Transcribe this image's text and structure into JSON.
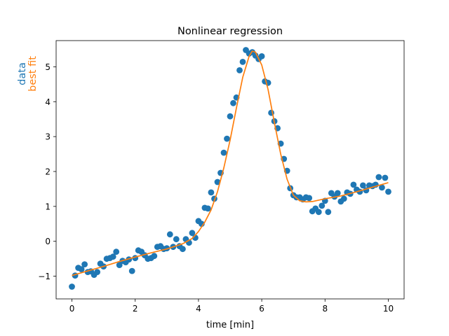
{
  "chart_data": {
    "type": "scatter",
    "title": "Nonlinear regression",
    "xlabel": "time [min]",
    "ylabel_parts": [
      {
        "text": "data",
        "color": "#1f77b4"
      },
      {
        "text": "best fit",
        "color": "#ff7f0e"
      }
    ],
    "xlim": [
      -0.5,
      10.5
    ],
    "ylim": [
      -1.65,
      5.75
    ],
    "xticks": [
      0,
      2,
      4,
      6,
      8,
      10
    ],
    "yticks": [
      -1,
      0,
      1,
      2,
      3,
      4,
      5
    ],
    "grid": false,
    "series": [
      {
        "kind": "scatter",
        "color": "#1f77b4",
        "x": [
          0.0,
          0.1,
          0.2,
          0.3,
          0.4,
          0.5,
          0.6,
          0.7,
          0.8,
          0.9,
          1.0,
          1.1,
          1.2,
          1.3,
          1.4,
          1.5,
          1.6,
          1.7,
          1.8,
          1.9,
          2.0,
          2.1,
          2.2,
          2.3,
          2.4,
          2.5,
          2.6,
          2.7,
          2.8,
          2.9,
          3.0,
          3.1,
          3.2,
          3.3,
          3.4,
          3.5,
          3.6,
          3.7,
          3.8,
          3.9,
          4.0,
          4.1,
          4.2,
          4.3,
          4.4,
          4.5,
          4.6,
          4.7,
          4.8,
          4.9,
          5.0,
          5.1,
          5.2,
          5.3,
          5.4,
          5.5,
          5.6,
          5.7,
          5.8,
          5.9,
          6.0,
          6.1,
          6.2,
          6.3,
          6.4,
          6.5,
          6.6,
          6.7,
          6.8,
          6.9,
          7.0,
          7.1,
          7.2,
          7.3,
          7.4,
          7.5,
          7.6,
          7.7,
          7.8,
          7.9,
          8.0,
          8.1,
          8.2,
          8.3,
          8.4,
          8.5,
          8.6,
          8.7,
          8.8,
          8.9,
          9.0,
          9.1,
          9.2,
          9.3,
          9.4,
          9.5,
          9.6,
          9.7,
          9.8,
          9.9,
          10.0
        ],
        "y": [
          -1.3,
          -0.98,
          -0.76,
          -0.8,
          -0.66,
          -0.88,
          -0.86,
          -0.96,
          -0.88,
          -0.64,
          -0.72,
          -0.5,
          -0.48,
          -0.44,
          -0.3,
          -0.68,
          -0.56,
          -0.6,
          -0.52,
          -0.85,
          -0.48,
          -0.26,
          -0.3,
          -0.4,
          -0.5,
          -0.48,
          -0.42,
          -0.16,
          -0.14,
          -0.22,
          -0.2,
          0.2,
          -0.16,
          0.06,
          -0.14,
          -0.22,
          0.06,
          -0.04,
          0.24,
          0.1,
          0.58,
          0.5,
          0.96,
          0.94,
          1.4,
          1.22,
          1.7,
          1.96,
          2.54,
          2.94,
          3.58,
          3.96,
          4.12,
          4.9,
          5.14,
          5.48,
          5.38,
          5.42,
          5.32,
          5.22,
          5.3,
          4.58,
          4.54,
          3.68,
          3.44,
          3.24,
          2.8,
          2.36,
          2.02,
          1.52,
          1.32,
          1.26,
          1.26,
          1.2,
          1.26,
          1.24,
          0.86,
          0.94,
          0.84,
          1.02,
          1.16,
          0.84,
          1.38,
          1.28,
          1.38,
          1.14,
          1.22,
          1.4,
          1.36,
          1.62,
          1.48,
          1.42,
          1.6,
          1.46,
          1.6,
          1.58,
          1.62,
          1.84,
          1.54,
          1.82,
          1.42
        ]
      },
      {
        "kind": "line",
        "color": "#ff7f0e",
        "x": [
          0.0,
          0.5,
          1.0,
          1.5,
          2.0,
          2.5,
          3.0,
          3.5,
          3.8,
          4.0,
          4.2,
          4.4,
          4.6,
          4.8,
          5.0,
          5.2,
          5.4,
          5.6,
          5.7,
          5.8,
          6.0,
          6.2,
          6.4,
          6.6,
          6.8,
          7.0,
          7.2,
          7.4,
          7.6,
          7.8,
          8.0,
          8.5,
          9.0,
          9.5,
          10.0
        ],
        "y": [
          -0.98,
          -0.85,
          -0.72,
          -0.58,
          -0.45,
          -0.33,
          -0.22,
          -0.07,
          0.08,
          0.28,
          0.55,
          0.9,
          1.42,
          2.1,
          2.9,
          3.82,
          4.7,
          5.3,
          5.45,
          5.42,
          5.05,
          4.35,
          3.4,
          2.5,
          1.78,
          1.32,
          1.16,
          1.13,
          1.14,
          1.18,
          1.22,
          1.3,
          1.42,
          1.55,
          1.68
        ]
      }
    ]
  }
}
